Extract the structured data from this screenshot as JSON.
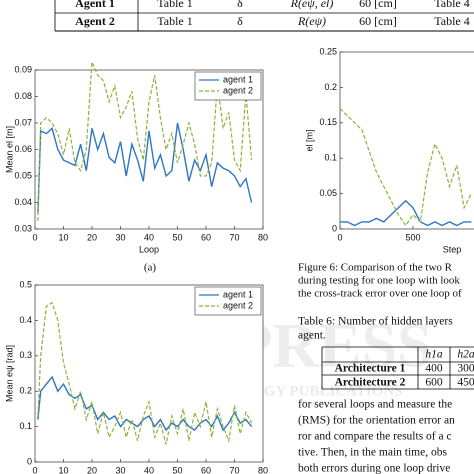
{
  "table_top": {
    "rows": [
      [
        "Agent 1",
        "Table 1",
        "δ",
        "R(eψ, el)",
        "60 [cm]",
        "Table 4"
      ],
      [
        "Agent 2",
        "Table 1",
        "δ",
        "R(eψ)",
        "60 [cm]",
        "Table 4"
      ]
    ]
  },
  "chart_data": [
    {
      "type": "line",
      "ylabel": "Mean el [m]",
      "xlabel": "Loop",
      "xlim": [
        0,
        80
      ],
      "xticks": [
        0,
        10,
        20,
        30,
        40,
        50,
        60,
        70,
        80
      ],
      "ylim": [
        0.03,
        0.09
      ],
      "yticks": [
        0.03,
        0.04,
        0.05,
        0.06,
        0.07,
        0.08,
        0.09
      ],
      "legend": "upper right",
      "x": [
        1,
        2,
        4,
        6,
        8,
        10,
        12,
        14,
        16,
        18,
        20,
        22,
        24,
        26,
        28,
        30,
        32,
        34,
        36,
        38,
        40,
        42,
        44,
        46,
        48,
        50,
        52,
        54,
        56,
        58,
        60,
        62,
        64,
        66,
        68,
        70,
        72,
        74,
        76
      ],
      "series": [
        {
          "name": "agent 1",
          "color": "#2e75c4",
          "linestyle": "solid",
          "values": [
            0.036,
            0.067,
            0.066,
            0.068,
            0.06,
            0.056,
            0.055,
            0.054,
            0.062,
            0.052,
            0.068,
            0.06,
            0.066,
            0.057,
            0.055,
            0.063,
            0.05,
            0.062,
            0.056,
            0.048,
            0.067,
            0.053,
            0.058,
            0.05,
            0.052,
            0.07,
            0.06,
            0.048,
            0.056,
            0.052,
            0.058,
            0.046,
            0.055,
            0.053,
            0.052,
            0.05,
            0.046,
            0.049,
            0.04
          ]
        },
        {
          "name": "agent 2",
          "color": "#8db33a",
          "linestyle": "dashed",
          "values": [
            0.033,
            0.07,
            0.072,
            0.07,
            0.066,
            0.058,
            0.068,
            0.055,
            0.052,
            0.06,
            0.093,
            0.088,
            0.086,
            0.078,
            0.084,
            0.072,
            0.076,
            0.082,
            0.064,
            0.056,
            0.078,
            0.088,
            0.072,
            0.06,
            0.066,
            0.055,
            0.062,
            0.07,
            0.062,
            0.05,
            0.05,
            0.055,
            0.085,
            0.068,
            0.074,
            0.056,
            0.052,
            0.081,
            0.056
          ]
        }
      ]
    },
    {
      "type": "line",
      "ylabel": "el [m]",
      "xlabel": "Step",
      "xlim": [
        0,
        1000
      ],
      "xticks": [
        0,
        500
      ],
      "ylim": [
        0,
        0.25
      ],
      "yticks": [
        0,
        0.05,
        0.1,
        0.15,
        0.2,
        0.25
      ],
      "x": [
        0,
        50,
        100,
        150,
        200,
        250,
        300,
        350,
        400,
        450,
        500,
        550,
        600,
        650,
        700,
        750,
        800,
        850,
        900
      ],
      "series": [
        {
          "color": "#2e75c4",
          "linestyle": "solid",
          "values": [
            0.01,
            0.01,
            0.005,
            0.01,
            0.01,
            0.015,
            0.01,
            0.02,
            0.03,
            0.04,
            0.03,
            0.01,
            0.005,
            0.01,
            0.005,
            0.01,
            0.005,
            0.01,
            0.01
          ]
        },
        {
          "color": "#8db33a",
          "linestyle": "dashed",
          "values": [
            0.17,
            0.16,
            0.15,
            0.14,
            0.11,
            0.08,
            0.06,
            0.04,
            0.02,
            0.005,
            0.02,
            0.01,
            0.08,
            0.12,
            0.1,
            0.06,
            0.09,
            0.03,
            0.05
          ]
        }
      ]
    },
    {
      "type": "line",
      "ylabel": "Mean eψ [rad]",
      "xlim": [
        0,
        80
      ],
      "xticks": [
        0,
        10,
        20,
        30,
        40,
        50,
        60,
        70,
        80
      ],
      "ylim": [
        0,
        0.5
      ],
      "yticks": [
        0,
        0.1,
        0.2,
        0.3,
        0.4,
        0.5
      ],
      "legend": "upper right",
      "x": [
        1,
        2,
        4,
        6,
        8,
        10,
        12,
        14,
        16,
        18,
        20,
        22,
        24,
        26,
        28,
        30,
        32,
        34,
        36,
        38,
        40,
        42,
        44,
        46,
        48,
        50,
        52,
        54,
        56,
        58,
        60,
        62,
        64,
        66,
        68,
        70,
        72,
        74,
        76
      ],
      "series": [
        {
          "name": "agent 1",
          "color": "#2e75c4",
          "linestyle": "solid",
          "values": [
            0.12,
            0.2,
            0.22,
            0.24,
            0.2,
            0.22,
            0.19,
            0.18,
            0.19,
            0.15,
            0.16,
            0.12,
            0.14,
            0.12,
            0.13,
            0.1,
            0.12,
            0.11,
            0.1,
            0.12,
            0.13,
            0.1,
            0.12,
            0.09,
            0.11,
            0.1,
            0.12,
            0.1,
            0.09,
            0.11,
            0.12,
            0.1,
            0.13,
            0.09,
            0.11,
            0.14,
            0.11,
            0.12,
            0.1
          ]
        },
        {
          "name": "agent 2",
          "color": "#8db33a",
          "linestyle": "dashed",
          "values": [
            0.13,
            0.3,
            0.44,
            0.45,
            0.4,
            0.28,
            0.22,
            0.15,
            0.2,
            0.12,
            0.17,
            0.08,
            0.14,
            0.07,
            0.1,
            0.14,
            0.07,
            0.12,
            0.06,
            0.13,
            0.17,
            0.07,
            0.11,
            0.05,
            0.13,
            0.08,
            0.15,
            0.06,
            0.14,
            0.1,
            0.17,
            0.07,
            0.15,
            0.1,
            0.06,
            0.16,
            0.08,
            0.14,
            0.11
          ]
        }
      ]
    }
  ],
  "caption_a": "(a)",
  "figure_6_caption": [
    "Figure 6: Comparison of the two R",
    "during testing for one loop with look",
    "the cross-track error over one loop of"
  ],
  "table_6": {
    "caption": [
      "Table 6: Number of hidden layers",
      "agent."
    ],
    "header": [
      "h1a",
      "h2a"
    ],
    "rows": [
      [
        "Architecture 1",
        "400",
        "300"
      ],
      [
        "Architecture 2",
        "600",
        "450"
      ]
    ]
  },
  "body_text": [
    "for several loops and measure the",
    "(RMS) for the orientation error an",
    "ror and compare the results of a c",
    "tive. Then, in the main time, obs",
    "both errors during one loop drive"
  ],
  "watermark": [
    "SCITEPRESS",
    "SCIENCE AND TECHNOLOGY PUBLICATIONS"
  ]
}
